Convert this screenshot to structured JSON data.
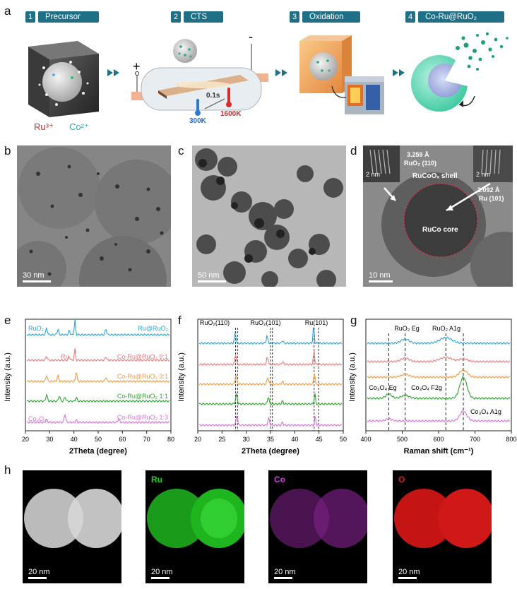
{
  "panels": {
    "a": "a",
    "b": "b",
    "c": "c",
    "d": "d",
    "e": "e",
    "f": "f",
    "g": "g",
    "h": "h"
  },
  "steps": [
    {
      "num": "1",
      "label": "Precursor"
    },
    {
      "num": "2",
      "label": "CTS"
    },
    {
      "num": "3",
      "label": "Oxidation"
    },
    {
      "num": "4",
      "label": "Co-Ru@RuO₂"
    }
  ],
  "schematic": {
    "ru_label": "Ru³⁺",
    "co_label": "Co²⁺",
    "plus": "+",
    "minus": "-",
    "time": "0.1s",
    "temp_low": "300K",
    "temp_high": "1600K"
  },
  "tem": {
    "b_scale": "30 nm",
    "c_scale": "50 nm",
    "d_scale": "10 nm",
    "d_inset_scale_left": "2 nm",
    "d_inset_scale_right": "2 nm",
    "d_spacing_left": "3.259 Å",
    "d_plane_left": "RuO₂ (110)",
    "d_spacing_right": "2.092 Å",
    "d_plane_right": "Ru (101)",
    "d_shell": "RuCoOₓ shell",
    "d_core": "RuCo core"
  },
  "chart_data": [
    {
      "type": "line",
      "panel": "e",
      "xlabel": "2Theta (degree)",
      "ylabel": "Intensity (a.u.)",
      "xlim": [
        20,
        80
      ],
      "xticks": [
        20,
        30,
        40,
        50,
        60,
        70,
        80
      ],
      "series": [
        {
          "name": "Ru@RuO₂",
          "color": "#2aa5dd"
        },
        {
          "name": "Co-Ru@RuO₂ 9:1",
          "color": "#f07a7a"
        },
        {
          "name": "Co-Ru@RuO₂ 3:1",
          "color": "#f59a3e"
        },
        {
          "name": "Co-Ru@RuO₂ 1:1",
          "color": "#2aa62a"
        },
        {
          "name": "Co-Ru@RuO₂ 1:3",
          "color": "#dd6ee0"
        }
      ],
      "annotations": [
        "RuO₂",
        "Ru",
        "Co₃O₄"
      ]
    },
    {
      "type": "line",
      "panel": "f",
      "xlabel": "2Theta (degree)",
      "ylabel": "Intensity (a.u.)",
      "xlim": [
        20,
        50
      ],
      "xticks": [
        20,
        25,
        30,
        35,
        40,
        45,
        50
      ],
      "annotations": [
        "RuO₂(110)",
        "RuO₂(101)",
        "Ru(101)"
      ],
      "reference_lines": [
        27.8,
        28.2,
        35.0,
        35.4,
        44.0,
        44.9
      ]
    },
    {
      "type": "line",
      "panel": "g",
      "xlabel": "Raman shift (cm⁻¹)",
      "ylabel": "Intensity (a.u.)",
      "xlim": [
        400,
        800
      ],
      "xticks": [
        400,
        500,
        600,
        700,
        800
      ],
      "annotations": [
        "RuO₂ Eg",
        "RuO₂ A1g",
        "Co₃O₄ Eg",
        "Co₃O₄ F2g",
        "Co₃O₄ A1g"
      ],
      "reference_lines": [
        463,
        508,
        620,
        668
      ]
    }
  ],
  "maps": [
    {
      "label": "",
      "scale": "20 nm"
    },
    {
      "label": "Ru",
      "scale": "20 nm",
      "color": "#22d022"
    },
    {
      "label": "Co",
      "scale": "20 nm",
      "color": "#d040d8"
    },
    {
      "label": "O",
      "scale": "20 nm",
      "color": "#e01818"
    }
  ]
}
